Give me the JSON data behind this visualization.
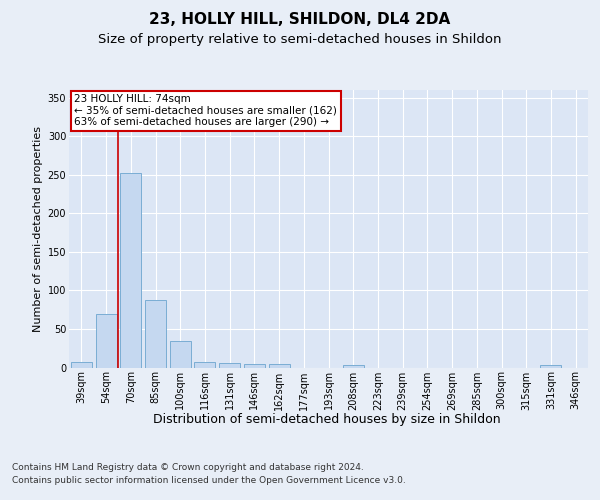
{
  "title": "23, HOLLY HILL, SHILDON, DL4 2DA",
  "subtitle": "Size of property relative to semi-detached houses in Shildon",
  "xlabel": "Distribution of semi-detached houses by size in Shildon",
  "ylabel": "Number of semi-detached properties",
  "footer_line1": "Contains HM Land Registry data © Crown copyright and database right 2024.",
  "footer_line2": "Contains public sector information licensed under the Open Government Licence v3.0.",
  "categories": [
    "39sqm",
    "54sqm",
    "70sqm",
    "85sqm",
    "100sqm",
    "116sqm",
    "131sqm",
    "146sqm",
    "162sqm",
    "177sqm",
    "193sqm",
    "208sqm",
    "223sqm",
    "239sqm",
    "254sqm",
    "269sqm",
    "285sqm",
    "300sqm",
    "315sqm",
    "331sqm",
    "346sqm"
  ],
  "values": [
    7,
    70,
    252,
    88,
    35,
    7,
    6,
    5,
    4,
    0,
    0,
    3,
    0,
    0,
    0,
    0,
    0,
    0,
    0,
    3,
    0
  ],
  "bar_color": "#c5d8f0",
  "bar_edgecolor": "#7aadd4",
  "annotation_text": "23 HOLLY HILL: 74sqm\n← 35% of semi-detached houses are smaller (162)\n63% of semi-detached houses are larger (290) →",
  "annotation_box_color": "#ffffff",
  "annotation_box_edgecolor": "#cc0000",
  "vline_color": "#cc0000",
  "vline_x": 1.5,
  "ylim": [
    0,
    360
  ],
  "yticks": [
    0,
    50,
    100,
    150,
    200,
    250,
    300,
    350
  ],
  "background_color": "#e8eef7",
  "plot_bg_color": "#dce6f5",
  "grid_color": "#ffffff",
  "title_fontsize": 11,
  "subtitle_fontsize": 9.5,
  "xlabel_fontsize": 9,
  "ylabel_fontsize": 8,
  "tick_fontsize": 7,
  "footer_fontsize": 6.5
}
